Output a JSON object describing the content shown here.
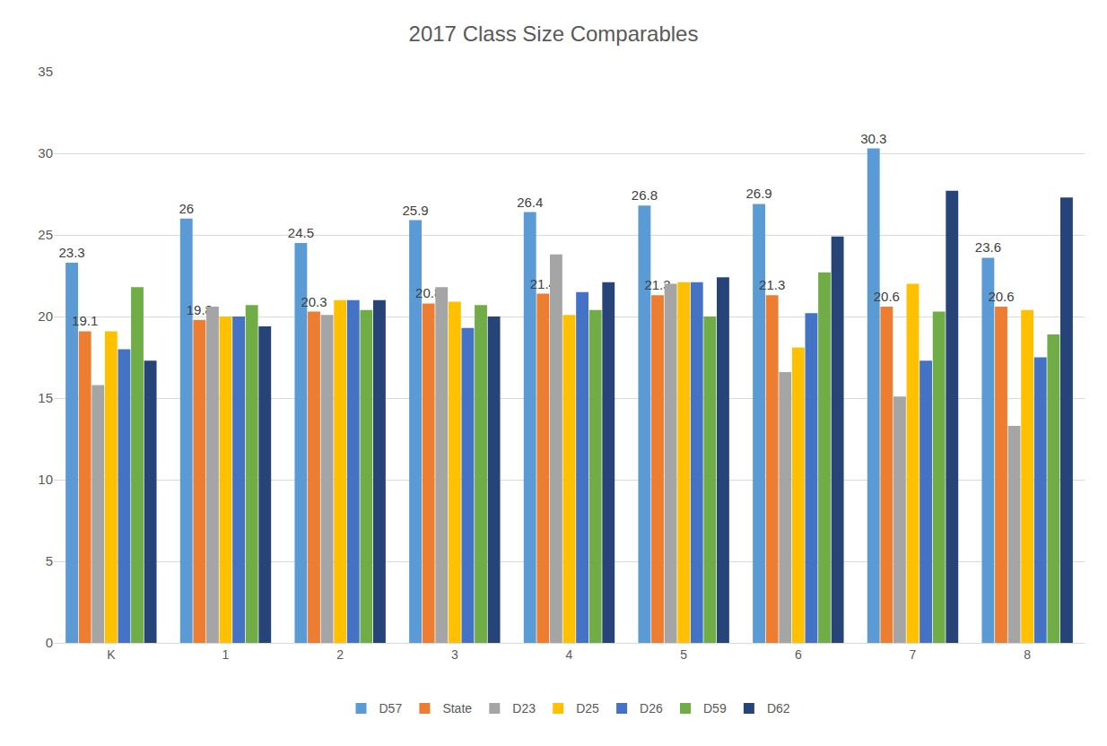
{
  "chart_data": {
    "type": "bar",
    "title": "2017 Class Size Comparables",
    "categories": [
      "K",
      "1",
      "2",
      "3",
      "4",
      "5",
      "6",
      "7",
      "8"
    ],
    "series": [
      {
        "name": "D57",
        "color": "#5b9bd5",
        "data_labels": true,
        "values": [
          23.3,
          26,
          24.5,
          25.9,
          26.4,
          26.8,
          26.9,
          30.3,
          23.6
        ]
      },
      {
        "name": "State",
        "color": "#ed7d31",
        "data_labels": true,
        "values": [
          19.1,
          19.8,
          20.3,
          20.8,
          21.4,
          21.3,
          21.3,
          20.6,
          20.6
        ]
      },
      {
        "name": "D23",
        "color": "#a5a5a5",
        "values": [
          15.8,
          20.6,
          20.1,
          21.8,
          23.8,
          22.0,
          16.6,
          15.1,
          13.3
        ]
      },
      {
        "name": "D25",
        "color": "#ffc000",
        "values": [
          19.1,
          20.0,
          21.0,
          20.9,
          20.1,
          22.1,
          18.1,
          22.0,
          20.4
        ]
      },
      {
        "name": "D26",
        "color": "#4472c4",
        "values": [
          18.0,
          20.0,
          21.0,
          19.3,
          21.5,
          22.1,
          20.2,
          17.3,
          17.5
        ]
      },
      {
        "name": "D59",
        "color": "#70ad47",
        "values": [
          21.8,
          20.7,
          20.4,
          20.7,
          20.4,
          20.0,
          22.7,
          20.3,
          18.9
        ]
      },
      {
        "name": "D62",
        "color": "#264478",
        "values": [
          17.3,
          19.4,
          21.0,
          20.0,
          22.1,
          22.4,
          24.9,
          27.7,
          27.3
        ]
      }
    ],
    "ylim": [
      0,
      35
    ],
    "yticks": [
      0,
      5,
      10,
      15,
      20,
      25,
      30,
      35
    ],
    "grid": true,
    "legend": "bottom"
  }
}
